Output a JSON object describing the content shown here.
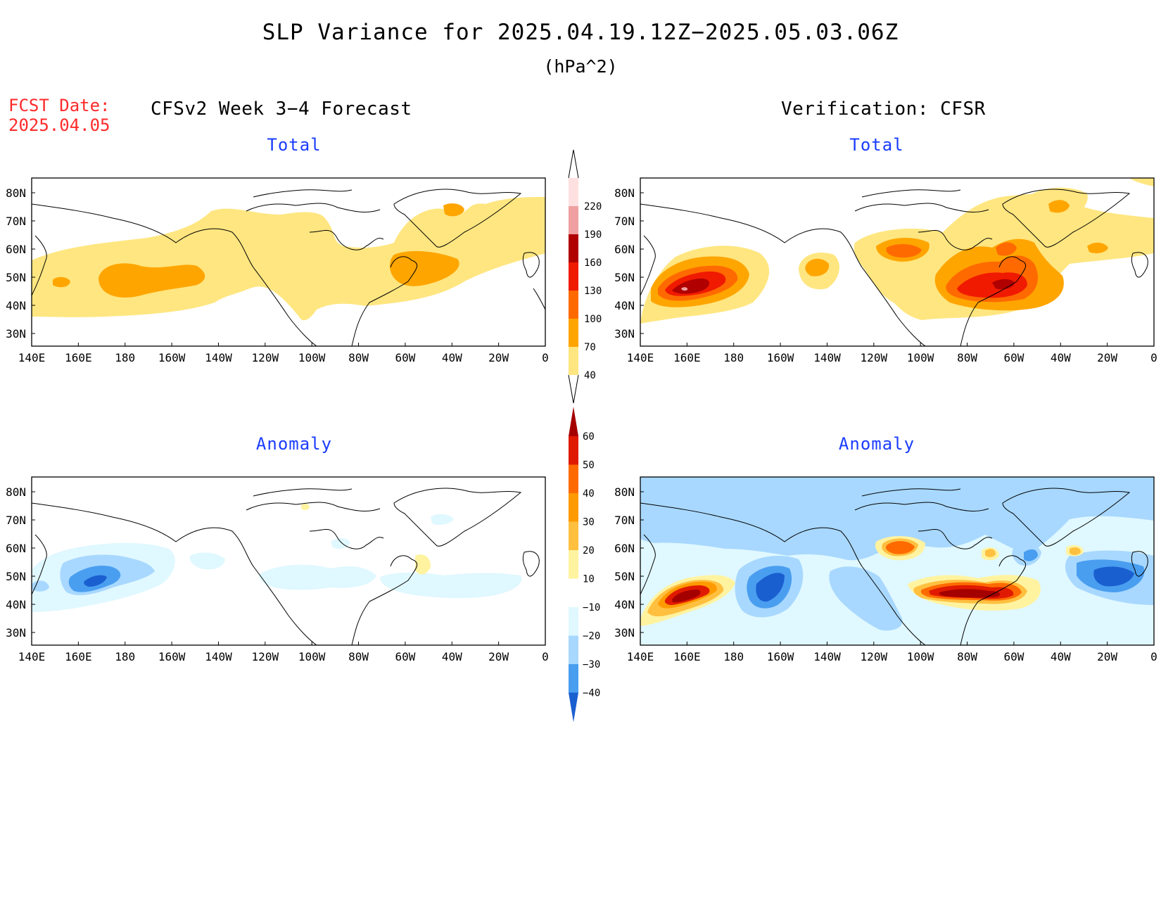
{
  "title": "SLP Variance for 2025.04.19.12Z−2025.05.03.06Z",
  "units": "(hPa^2)",
  "fcst_label": "FCST Date:",
  "fcst_date": "2025.04.05",
  "left_column_title": "CFSv2 Week 3−4 Forecast",
  "right_column_title": "Verification: CFSR",
  "panels": {
    "top_left": "Total",
    "top_right": "Total",
    "bottom_left": "Anomaly",
    "bottom_right": "Anomaly"
  },
  "axes": {
    "lon_labels": [
      "140E",
      "160E",
      "180",
      "160W",
      "140W",
      "120W",
      "100W",
      "80W",
      "60W",
      "40W",
      "20W",
      "0"
    ],
    "lat_labels": [
      "80N",
      "70N",
      "60N",
      "50N",
      "40N",
      "30N"
    ]
  },
  "colorbar_total": {
    "levels": [
      "40",
      "70",
      "100",
      "130",
      "160",
      "190",
      "220"
    ],
    "colors": [
      "#ffe680",
      "#ffa500",
      "#ff6a00",
      "#f01a00",
      "#b00000",
      "#f0a0a0",
      "#ffd8d8"
    ]
  },
  "colorbar_anomaly": {
    "levels": [
      "60",
      "50",
      "40",
      "30",
      "20",
      "10",
      "−10",
      "−20",
      "−30",
      "−40"
    ],
    "colors": [
      "#a50000",
      "#e01a00",
      "#ff6a00",
      "#ff9a00",
      "#ffc040",
      "#fff3a0",
      "#ffffff",
      "#e0f8ff",
      "#a8d8ff",
      "#4a9ef0",
      "#1a5fd0"
    ]
  }
}
